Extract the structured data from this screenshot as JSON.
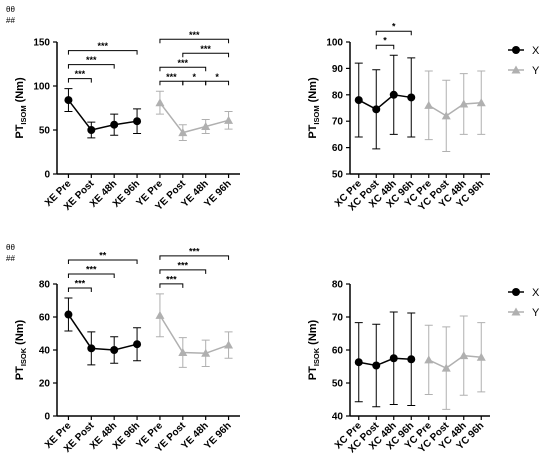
{
  "chart_data": [
    {
      "type": "line",
      "annotations": [
        "θθ",
        "##"
      ],
      "ylabel": {
        "main": "PT",
        "sub": "ISOM",
        "unit": "(Nm)"
      },
      "categories": [
        "XE Pre",
        "XE Post",
        "XE 48h",
        "XE 96h",
        "YE Pre",
        "YE Post",
        "YE 48h",
        "YE 96h"
      ],
      "series": [
        {
          "color": "#000000",
          "marker": "circle",
          "values": [
            84,
            50,
            56,
            60,
            null,
            null,
            null,
            null
          ],
          "errors": [
            13,
            9,
            12,
            14,
            null,
            null,
            null,
            null
          ]
        },
        {
          "color": "#b0b0b0",
          "marker": "triangle",
          "values": [
            null,
            null,
            null,
            null,
            81,
            47,
            54,
            61
          ],
          "errors": [
            null,
            null,
            null,
            null,
            13,
            9,
            8,
            10
          ]
        }
      ],
      "ylim": [
        0,
        150
      ],
      "yticks": [
        0,
        50,
        100,
        150
      ],
      "brackets": [
        {
          "from": 0,
          "to": 1,
          "label": "***"
        },
        {
          "from": 0,
          "to": 2,
          "label": "***"
        },
        {
          "from": 0,
          "to": 3,
          "label": "***"
        },
        {
          "from": 4,
          "to": 5,
          "label": "***"
        },
        {
          "from": 5,
          "to": 6,
          "label": "*"
        },
        {
          "from": 6,
          "to": 7,
          "label": "*"
        },
        {
          "from": 4,
          "to": 6,
          "label": "***"
        },
        {
          "from": 5,
          "to": 7,
          "label": "***"
        },
        {
          "from": 4,
          "to": 7,
          "label": "***"
        }
      ]
    },
    {
      "type": "line",
      "legend": "right",
      "ylabel": {
        "main": "PT",
        "sub": "ISOM",
        "unit": "(Nm)"
      },
      "categories": [
        "XC Pre",
        "XC Post",
        "XC 48h",
        "XC 96h",
        "YC Pre",
        "YC Post",
        "YC 48h",
        "YC 96h"
      ],
      "series": [
        {
          "name": "X",
          "color": "#000000",
          "marker": "circle",
          "values": [
            78,
            74.5,
            80,
            79,
            null,
            null,
            null,
            null
          ],
          "errors": [
            14,
            15,
            15,
            15,
            null,
            null,
            null,
            null
          ]
        },
        {
          "name": "Y",
          "color": "#b0b0b0",
          "marker": "triangle",
          "values": [
            null,
            null,
            null,
            null,
            76,
            72,
            76.5,
            77
          ],
          "errors": [
            null,
            null,
            null,
            null,
            13,
            13.5,
            11.5,
            12
          ]
        }
      ],
      "ylim": [
        50,
        100
      ],
      "yticks": [
        50,
        60,
        70,
        80,
        90,
        100
      ],
      "brackets": [
        {
          "from": 1,
          "to": 2,
          "label": "*"
        },
        {
          "from": 1,
          "to": 3,
          "label": "*"
        }
      ]
    },
    {
      "type": "line",
      "annotations": [
        "θθ",
        "##"
      ],
      "ylabel": {
        "main": "PT",
        "sub": "ISOK",
        "unit": "(Nm)"
      },
      "categories": [
        "XE Pre",
        "XE Post",
        "XE 48h",
        "XE 96h",
        "YE Pre",
        "YE Post",
        "YE 48h",
        "YE 96h"
      ],
      "series": [
        {
          "color": "#000000",
          "marker": "circle",
          "values": [
            61.5,
            41,
            40,
            43.5,
            null,
            null,
            null,
            null
          ],
          "errors": [
            10,
            10,
            8,
            10,
            null,
            null,
            null,
            null
          ]
        },
        {
          "color": "#b0b0b0",
          "marker": "triangle",
          "values": [
            null,
            null,
            null,
            null,
            61,
            38.5,
            38,
            43
          ],
          "errors": [
            null,
            null,
            null,
            null,
            13,
            9,
            8,
            8
          ]
        }
      ],
      "ylim": [
        0,
        80
      ],
      "yticks": [
        0,
        20,
        40,
        60,
        80
      ],
      "brackets": [
        {
          "from": 0,
          "to": 1,
          "label": "***"
        },
        {
          "from": 0,
          "to": 2,
          "label": "***"
        },
        {
          "from": 0,
          "to": 3,
          "label": "**"
        },
        {
          "from": 4,
          "to": 5,
          "label": "***"
        },
        {
          "from": 4,
          "to": 6,
          "label": "***"
        },
        {
          "from": 4,
          "to": 7,
          "label": "***"
        }
      ]
    },
    {
      "type": "line",
      "legend": "right",
      "ylabel": {
        "main": "PT",
        "sub": "ISOK",
        "unit": "(Nm)"
      },
      "categories": [
        "XC Pre",
        "XC Post",
        "XC 48h",
        "XC 96h",
        "YC Pre",
        "YC Post",
        "YC 48h",
        "YC 96h"
      ],
      "series": [
        {
          "name": "X",
          "color": "#000000",
          "marker": "circle",
          "values": [
            56.3,
            55.3,
            57.5,
            57.2,
            null,
            null,
            null,
            null
          ],
          "errors": [
            12,
            12.5,
            14,
            14,
            null,
            null,
            null,
            null
          ]
        },
        {
          "name": "Y",
          "color": "#b0b0b0",
          "marker": "triangle",
          "values": [
            null,
            null,
            null,
            null,
            57,
            54.5,
            58.3,
            57.8
          ],
          "errors": [
            null,
            null,
            null,
            null,
            10.5,
            12.5,
            12,
            10.5
          ]
        }
      ],
      "ylim": [
        40,
        80
      ],
      "yticks": [
        40,
        50,
        60,
        70,
        80
      ]
    }
  ]
}
